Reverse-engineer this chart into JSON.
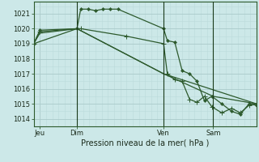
{
  "background_color": "#cce8e8",
  "grid_color_major": "#aacaca",
  "grid_color_minor": "#bbdada",
  "line_color": "#2d5a2d",
  "marker_color": "#2d5a2d",
  "ylabel_ticks": [
    1014,
    1015,
    1016,
    1017,
    1018,
    1019,
    1020,
    1021
  ],
  "ylim": [
    1013.5,
    1021.8
  ],
  "x_tick_labels": [
    "Jeu",
    "Dim",
    "Ven",
    "Sam"
  ],
  "x_tick_positions": [
    0.5,
    3.5,
    10.5,
    14.5
  ],
  "xlim": [
    0,
    18
  ],
  "xlabel": "Pression niveau de la mer( hPa )",
  "series1_x": [
    0.0,
    0.5,
    3.5,
    3.8,
    4.4,
    5.0,
    5.6,
    6.2,
    6.8,
    10.5,
    10.8,
    11.4,
    12.0,
    12.6,
    13.2,
    13.8,
    14.4,
    15.2,
    16.0,
    16.7,
    17.4,
    18.0
  ],
  "series1_y": [
    1019.0,
    1019.9,
    1020.0,
    1021.3,
    1021.3,
    1021.2,
    1021.3,
    1021.3,
    1021.3,
    1020.0,
    1019.2,
    1019.1,
    1017.2,
    1017.0,
    1016.5,
    1015.2,
    1015.5,
    1015.0,
    1014.5,
    1014.3,
    1015.0,
    1014.9
  ],
  "series2_x": [
    0.0,
    0.5,
    3.5,
    3.8,
    7.5,
    10.5,
    10.8,
    11.4,
    12.0,
    12.6,
    13.2,
    13.8,
    14.4,
    15.2,
    16.0,
    16.7,
    17.4,
    18.0
  ],
  "series2_y": [
    1019.0,
    1019.8,
    1020.0,
    1020.0,
    1019.5,
    1019.0,
    1017.0,
    1016.6,
    1016.5,
    1015.3,
    1015.1,
    1015.5,
    1014.8,
    1014.4,
    1014.7,
    1014.4,
    1014.9,
    1015.0
  ],
  "series3_x": [
    0.0,
    0.5,
    3.5,
    10.5,
    14.5,
    18.0
  ],
  "series3_y": [
    1019.0,
    1019.7,
    1020.0,
    1017.0,
    1015.5,
    1015.0
  ],
  "series4_x": [
    0.0,
    3.5,
    10.5,
    18.0
  ],
  "series4_y": [
    1019.0,
    1020.0,
    1017.0,
    1015.0
  ],
  "vline_positions": [
    3.5,
    10.5,
    14.5
  ],
  "minor_grid_x": 18,
  "minor_grid_steps": 36
}
